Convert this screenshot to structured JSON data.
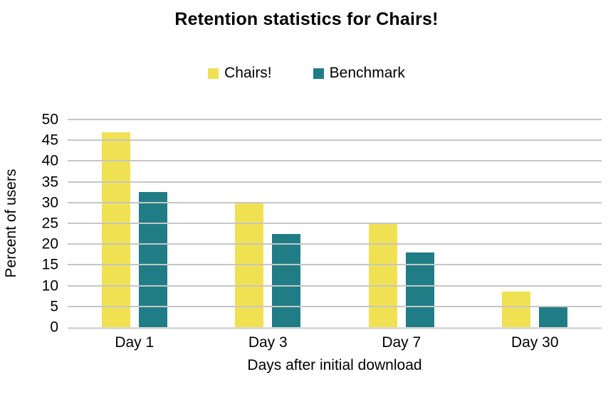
{
  "chart_data": {
    "type": "bar",
    "title": "Retention statistics for Chairs!",
    "categories": [
      "Day 1",
      "Day 3",
      "Day 7",
      "Day 30"
    ],
    "series": [
      {
        "name": "Chairs!",
        "color": "#F0E152",
        "values": [
          47,
          30,
          25,
          8.5
        ]
      },
      {
        "name": "Benchmark",
        "color": "#217D85",
        "values": [
          32.5,
          22.5,
          18,
          5
        ]
      }
    ],
    "xlabel": "Days after initial download",
    "ylabel": "Percent of users",
    "ylim": [
      0,
      50
    ],
    "ytick_step": 5,
    "yticks": [
      0,
      5,
      10,
      15,
      20,
      25,
      30,
      35,
      40,
      45,
      50
    ],
    "grid": true,
    "legend_position": "top",
    "colors": {
      "gridline": "#C6C6C6",
      "axis_line": "#D9D9D9",
      "text": "#000000",
      "background": "#FFFFFF"
    }
  }
}
